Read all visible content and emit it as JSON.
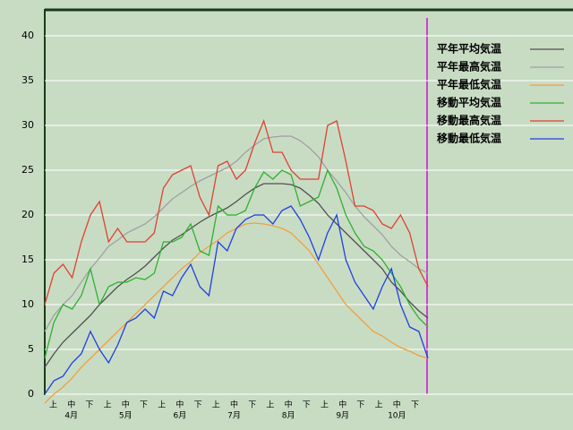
{
  "chart_data": {
    "type": "line",
    "ylim": [
      0,
      43
    ],
    "yticks": [
      0,
      5,
      10,
      15,
      20,
      25,
      30,
      35,
      40
    ],
    "grid": true,
    "legend": "right",
    "x_axis": {
      "dekads": [
        "上",
        "中",
        "下",
        "上",
        "中",
        "下",
        "上",
        "中",
        "下",
        "上",
        "中",
        "下",
        "上",
        "中",
        "下",
        "上",
        "中",
        "下",
        "上",
        "中",
        "下"
      ],
      "months": [
        "4月",
        "5月",
        "6月",
        "7月",
        "8月",
        "9月",
        "10月"
      ]
    },
    "series": [
      {
        "name": "平年平均気温",
        "color": "#505050",
        "values": [
          3,
          4.5,
          5.8,
          6.8,
          7.8,
          8.8,
          10,
          11,
          12,
          12.8,
          13.5,
          14.3,
          15.3,
          16.3,
          17.2,
          17.8,
          18.5,
          19.2,
          19.8,
          20.3,
          20.8,
          21.5,
          22.3,
          23,
          23.5,
          23.5,
          23.5,
          23.4,
          23,
          22.2,
          21.3,
          20,
          19,
          18,
          17,
          16,
          15,
          14,
          12.5,
          11.5,
          10.3,
          9.3,
          8.5
        ]
      },
      {
        "name": "平年最高気温",
        "color": "#a0a0a0",
        "values": [
          7,
          8.8,
          10,
          11,
          12.5,
          14,
          15.2,
          16.5,
          17.2,
          18,
          18.5,
          19,
          19.8,
          20.8,
          21.8,
          22.5,
          23.2,
          23.8,
          24.3,
          24.8,
          25.3,
          26,
          27,
          27.8,
          28.5,
          28.7,
          28.8,
          28.8,
          28.3,
          27.5,
          26.5,
          25,
          23.8,
          22.5,
          21,
          19.8,
          18.8,
          17.8,
          16.5,
          15.5,
          14.8,
          14,
          13.5
        ]
      },
      {
        "name": "平年最低気温",
        "color": "#f0a040",
        "values": [
          -1,
          0,
          0.8,
          1.8,
          3,
          4,
          5,
          6,
          7,
          8,
          9,
          10,
          11,
          12,
          13,
          14,
          14.8,
          15.8,
          16.5,
          17.2,
          18,
          18.5,
          19,
          19.1,
          19,
          18.8,
          18.5,
          18,
          17,
          16,
          14.5,
          13,
          11.5,
          10,
          9,
          8,
          7,
          6.5,
          5.8,
          5.2,
          4.8,
          4.3,
          4
        ]
      },
      {
        "name": "移動平均気温",
        "color": "#30b030",
        "values": [
          4,
          8,
          10,
          9.5,
          11,
          14,
          10,
          12,
          12.5,
          12.5,
          13,
          12.8,
          13.5,
          17,
          17,
          17.5,
          19,
          16,
          15.5,
          21,
          20,
          20,
          20.5,
          23,
          24.8,
          24,
          25,
          24.5,
          21,
          21.5,
          22,
          25,
          23,
          20,
          18,
          16.5,
          16,
          15,
          13.5,
          12,
          10,
          8.5,
          7.5
        ]
      },
      {
        "name": "移動最高気温",
        "color": "#e04030",
        "values": [
          10,
          13.5,
          14.5,
          13,
          17,
          20,
          21.5,
          17,
          18.5,
          17,
          17,
          17,
          18,
          23,
          24.5,
          25,
          25.5,
          22,
          20,
          25.5,
          26,
          24,
          25,
          28,
          30.5,
          27,
          27,
          25,
          24,
          24,
          24,
          30,
          30.5,
          26,
          21,
          21,
          20.5,
          19,
          18.5,
          20,
          18,
          14,
          12
        ]
      },
      {
        "name": "移動最低気温",
        "color": "#2040e0",
        "values": [
          0,
          1.5,
          2,
          3.5,
          4.5,
          7,
          5,
          3.5,
          5.5,
          8,
          8.5,
          9.5,
          8.5,
          11.5,
          11,
          13,
          14.5,
          12,
          11,
          17,
          16,
          18.5,
          19.5,
          20,
          20,
          19,
          20.5,
          21,
          19.5,
          17.5,
          15,
          18,
          20,
          15,
          12.5,
          11,
          9.5,
          12,
          14,
          10,
          7.5,
          7,
          4
        ]
      }
    ]
  }
}
